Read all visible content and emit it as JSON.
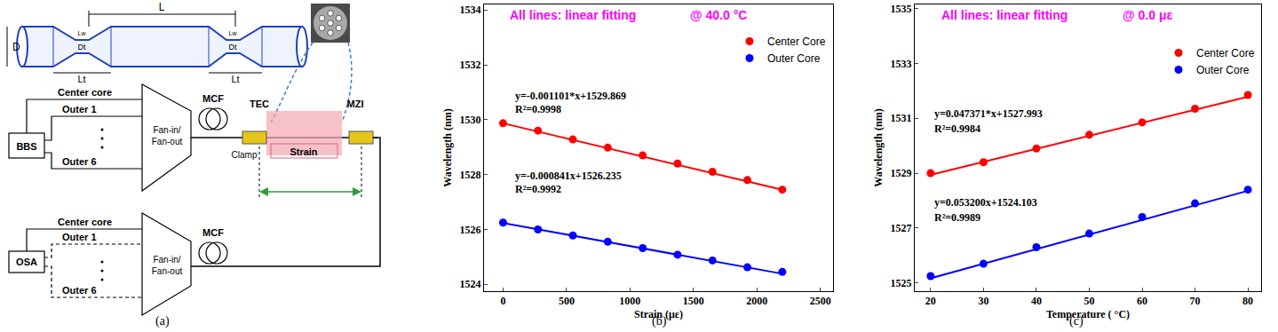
{
  "panel_labels": [
    "(a)",
    "(b)",
    "(c)"
  ],
  "diagram": {
    "fiber_labels": {
      "D": "D",
      "L": "L",
      "Dt": "Dt",
      "Lw": "Lw",
      "Lt": "Lt"
    },
    "source": "BBS",
    "analyzer": "OSA",
    "fan": [
      "Fan-in/",
      "Fan-out"
    ],
    "cores": [
      "Center core",
      "Outer 1",
      "Outer 6"
    ],
    "fiber": "MCF",
    "tec": "TEC",
    "mzi": "MZI",
    "clamp": "Clamp",
    "strain": "Strain"
  },
  "chart_data": [
    {
      "type": "scatter",
      "annotations": [
        "All lines: linear fitting",
        "@ 40.0 °C"
      ],
      "x_label": "Strain (με)",
      "y_label": "Wavelength (nm)",
      "x": [
        0,
        275,
        550,
        825,
        1100,
        1375,
        1650,
        1925,
        2200
      ],
      "xlim": [
        -150,
        2600
      ],
      "ylim": [
        1523.75,
        1534.2
      ],
      "xticks": [
        0,
        500,
        1000,
        1500,
        2000,
        2500
      ],
      "yticks": [
        1524,
        1526,
        1528,
        1530,
        1532,
        1534
      ],
      "grid": false,
      "legend": "upper right",
      "series": [
        {
          "name": "Center Core",
          "color": "#ff0000",
          "marker": "circle",
          "line_style": "solid",
          "values": [
            1529.87,
            1529.6,
            1529.28,
            1528.98,
            1528.7,
            1528.4,
            1528.1,
            1527.8,
            1527.45
          ],
          "fit": {
            "slope": -0.001101,
            "intercept": 1529.869,
            "equation": "y=-0.001101*x+1529.869",
            "r2_label": "R²=0.9998"
          }
        },
        {
          "name": "Outer Core",
          "color": "#0000ff",
          "marker": "circle",
          "line_style": "solid",
          "values": [
            1526.25,
            1526.0,
            1525.78,
            1525.55,
            1525.32,
            1525.08,
            1524.87,
            1524.62,
            1524.45
          ],
          "fit": {
            "slope": -0.000841,
            "intercept": 1526.235,
            "equation": "y=-0.000841x+1526.235",
            "r2_label": "R²=0.9992"
          }
        }
      ]
    },
    {
      "type": "scatter",
      "annotations": [
        "All lines: linear fitting",
        "@ 0.0 με"
      ],
      "x_label": "Temperature ( °C)",
      "y_label": "Wavelength (nm)",
      "x": [
        20,
        30,
        40,
        50,
        60,
        70,
        80
      ],
      "xlim": [
        17,
        82.5
      ],
      "ylim": [
        1524.7,
        1535.15
      ],
      "xticks": [
        20,
        30,
        40,
        50,
        60,
        70,
        80
      ],
      "yticks": [
        1525,
        1527,
        1529,
        1531,
        1533,
        1535
      ],
      "grid": false,
      "legend": "upper right",
      "series": [
        {
          "name": "Center Core",
          "color": "#ff0000",
          "marker": "circle",
          "line_style": "solid",
          "values": [
            1529.0,
            1529.4,
            1529.9,
            1530.4,
            1530.85,
            1531.35,
            1531.85
          ],
          "fit": {
            "slope": 0.047371,
            "intercept": 1527.993,
            "equation": "y=0.047371*x+1527.993",
            "r2_label": "R²=0.9984"
          }
        },
        {
          "name": "Outer Core",
          "color": "#0000ff",
          "marker": "circle",
          "line_style": "solid",
          "values": [
            1525.25,
            1525.7,
            1526.3,
            1526.8,
            1527.4,
            1527.9,
            1528.4
          ],
          "fit": {
            "slope": 0.0532,
            "intercept": 1524.103,
            "equation": "y=0.053200x+1524.103",
            "r2_label": "R²=0.9989"
          }
        }
      ]
    }
  ]
}
